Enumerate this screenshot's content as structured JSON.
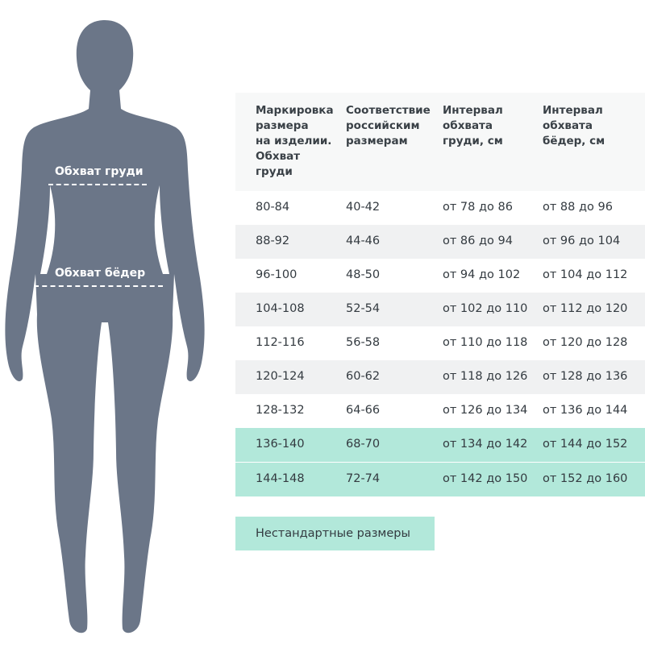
{
  "figure": {
    "chest_label": "Обхват груди",
    "hip_label": "Обхват бёдер",
    "silhouette_color": "#6b7688"
  },
  "table": {
    "headers": [
      "Маркировка\nразмера\nна изделии.\nОбхват\nгруди",
      "Соответствие\nроссийским\nразмерам",
      "Интервал\nобхвата\nгруди, см",
      "Интервал\nобхвата\nбёдер, см"
    ],
    "rows": [
      [
        "80-84",
        "40-42",
        "от 78 до 86",
        "от 88 до 96"
      ],
      [
        "88-92",
        "44-46",
        "от 86 до 94",
        "от 96 до 104"
      ],
      [
        "96-100",
        "48-50",
        "от 94 до 102",
        "от 104 до 112"
      ],
      [
        "104-108",
        "52-54",
        "от 102 до 110",
        "от 112 до 120"
      ],
      [
        "112-116",
        "56-58",
        "от 110 до 118",
        "от 120 до 128"
      ],
      [
        "120-124",
        "60-62",
        "от 118 до 126",
        "от 128 до 136"
      ],
      [
        "128-132",
        "64-66",
        "от 126 до 134",
        "от 136 до 144"
      ],
      [
        "136-140",
        "68-70",
        "от 134 до 142",
        "от 144 до 152"
      ],
      [
        "144-148",
        "72-74",
        "от 142 до 150",
        "от 152 до 160"
      ]
    ],
    "highlight_color": "#b2e8da"
  },
  "legend": {
    "nonstandard_label": "Нестандартные размеры"
  }
}
